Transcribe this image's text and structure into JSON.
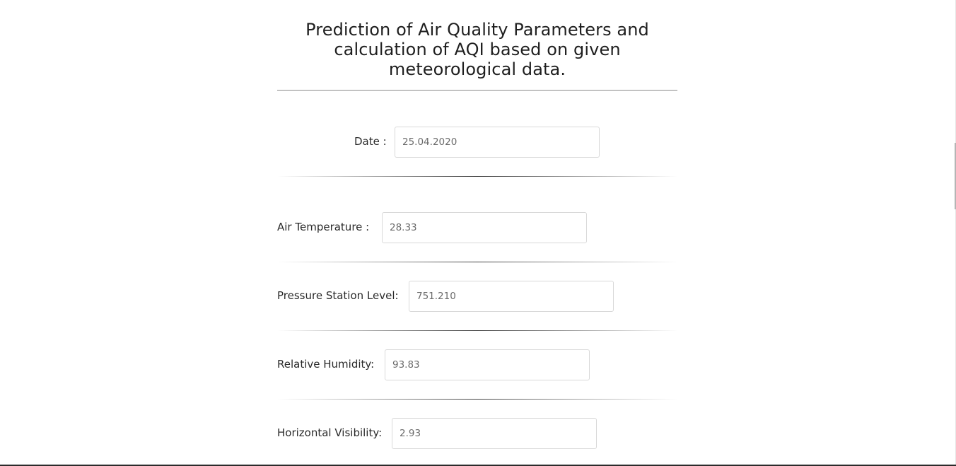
{
  "header": {
    "title_line1": "Prediction of Air Quality Parameters and",
    "title_line2": "calculation of AQI based on given",
    "title_line3": "meteorological data."
  },
  "form": {
    "date": {
      "label": "Date :",
      "value": "25.04.2020"
    },
    "air_temperature": {
      "label": "Air Temperature :",
      "value": "28.33"
    },
    "pressure_station_level": {
      "label": "Pressure Station Level:",
      "value": "751.210"
    },
    "relative_humidity": {
      "label": "Relative Humidity:",
      "value": "93.83"
    },
    "horizontal_visibility": {
      "label": "Horizontal Visibility:",
      "value": "2.93"
    }
  }
}
